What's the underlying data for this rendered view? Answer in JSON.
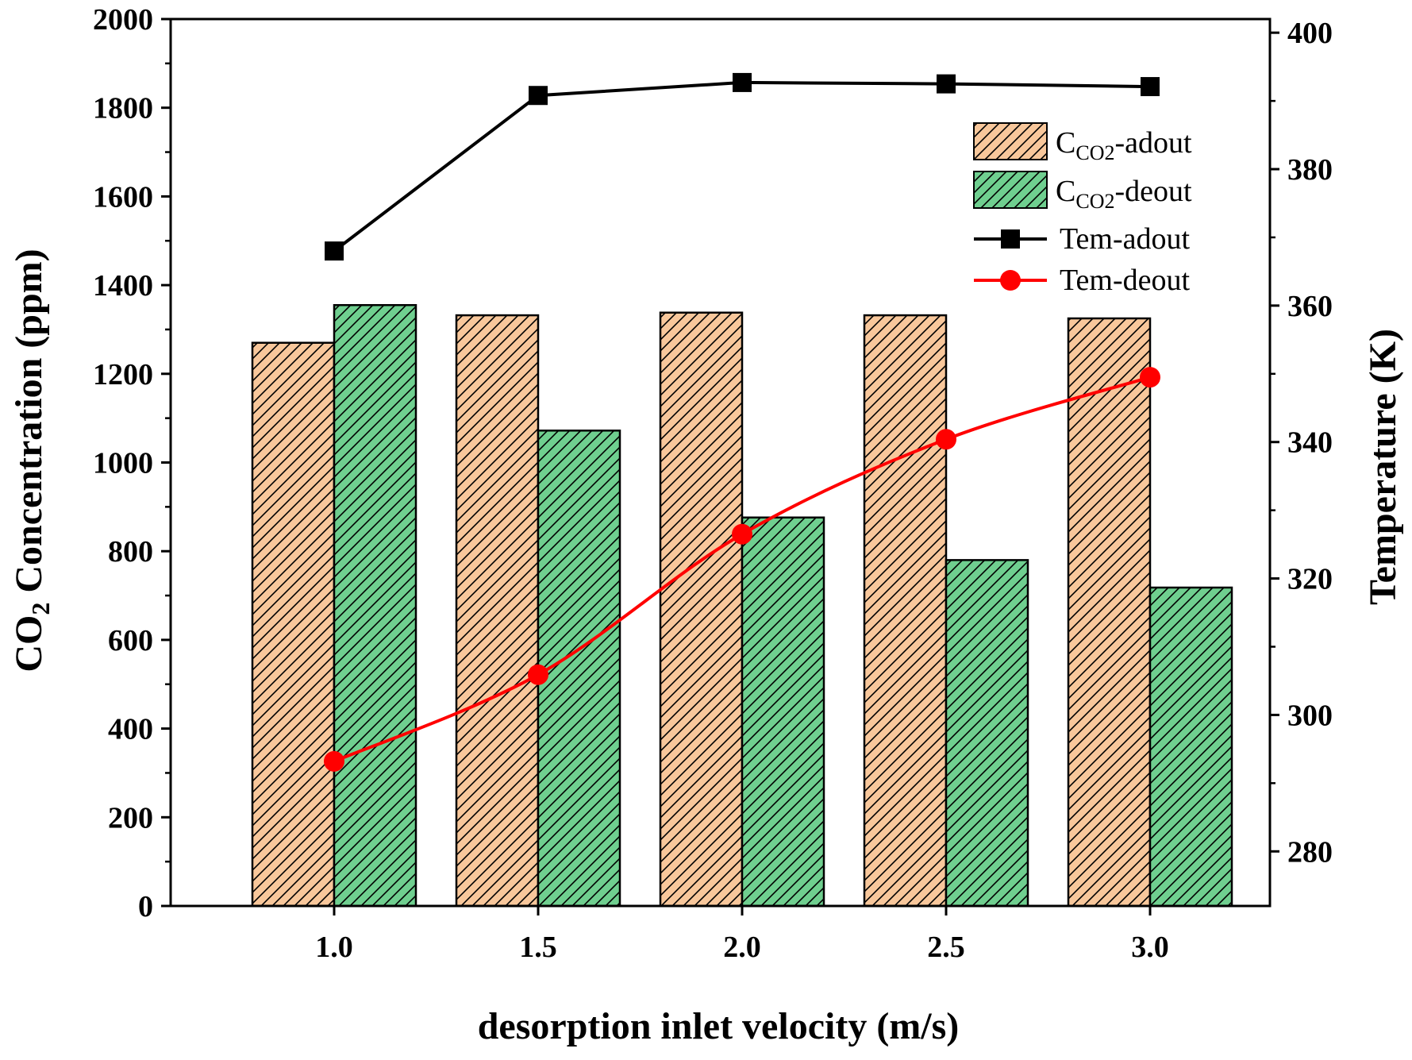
{
  "chart_data": {
    "type": "bar",
    "xlabel": "desorption inlet velocity (m/s)",
    "ylabel": {
      "main": "CO",
      "sub": "2",
      "rest": " Concentration (ppm)"
    },
    "y2label": "Temperature (K)",
    "categories": [
      "1.0",
      "1.5",
      "2.0",
      "2.5",
      "3.0"
    ],
    "ylim": [
      0,
      2000
    ],
    "yticks": [
      "0",
      "200",
      "400",
      "600",
      "800",
      "1000",
      "1200",
      "1400",
      "1600",
      "1800",
      "2000"
    ],
    "y2lim": [
      272,
      402
    ],
    "y2ticks": [
      "280",
      "300",
      "320",
      "340",
      "360",
      "380",
      "400"
    ],
    "bar_series": [
      {
        "name": {
          "main": "C",
          "sub": "CO2",
          "rest": "-adout"
        },
        "color": "#F8C79B",
        "values": [
          1270,
          1332,
          1338,
          1332,
          1325
        ]
      },
      {
        "name": {
          "main": "C",
          "sub": "CO2",
          "rest": "-deout"
        },
        "color": "#6FCF8F",
        "values": [
          1355,
          1072,
          876,
          780,
          718
        ]
      }
    ],
    "line_series": [
      {
        "name": "Tem-adout",
        "color": "#000000",
        "marker": "square",
        "axis": "right",
        "values": [
          368.0,
          390.8,
          392.7,
          392.5,
          392.1
        ]
      },
      {
        "name": "Tem-deout",
        "color": "#FF0000",
        "marker": "circle",
        "axis": "right",
        "values": [
          293.2,
          305.9,
          326.5,
          340.4,
          349.5
        ]
      }
    ],
    "legend_position": "top-right",
    "grid": false
  }
}
